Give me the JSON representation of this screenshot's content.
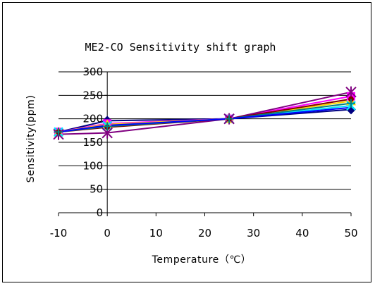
{
  "chart_data": {
    "type": "line",
    "title": "ME2-CO Sensitivity shift graph",
    "xlabel": "Temperature（℃）",
    "ylabel": "Sensitivity(ppm)",
    "x": [
      -10,
      0,
      25,
      50
    ],
    "xlim": [
      -10,
      50
    ],
    "ylim": [
      0,
      300
    ],
    "xticks": [
      -10,
      0,
      10,
      20,
      30,
      40,
      50
    ],
    "yticks": [
      0,
      50,
      100,
      150,
      200,
      250,
      300
    ],
    "grid": "horizontal",
    "legend": "none",
    "series": [
      {
        "color": "#000080",
        "marker": "diamond",
        "values": [
          172,
          196,
          200,
          220
        ]
      },
      {
        "color": "#ff00ff",
        "marker": "square",
        "values": [
          172,
          190,
          200,
          248
        ]
      },
      {
        "color": "#ffd700",
        "marker": "triangle",
        "values": [
          172,
          188,
          200,
          238
        ]
      },
      {
        "color": "#00e5ff",
        "marker": "x",
        "values": [
          172,
          185,
          200,
          228
        ]
      },
      {
        "color": "#800080",
        "marker": "star",
        "values": [
          167,
          170,
          200,
          257
        ]
      },
      {
        "color": "#800000",
        "marker": "circle",
        "values": [
          172,
          182,
          200,
          242
        ]
      },
      {
        "color": "#008080",
        "marker": "plus",
        "values": [
          172,
          184,
          200,
          233
        ]
      },
      {
        "color": "#0000ff",
        "marker": "none",
        "values": [
          172,
          186,
          200,
          224
        ]
      }
    ]
  }
}
